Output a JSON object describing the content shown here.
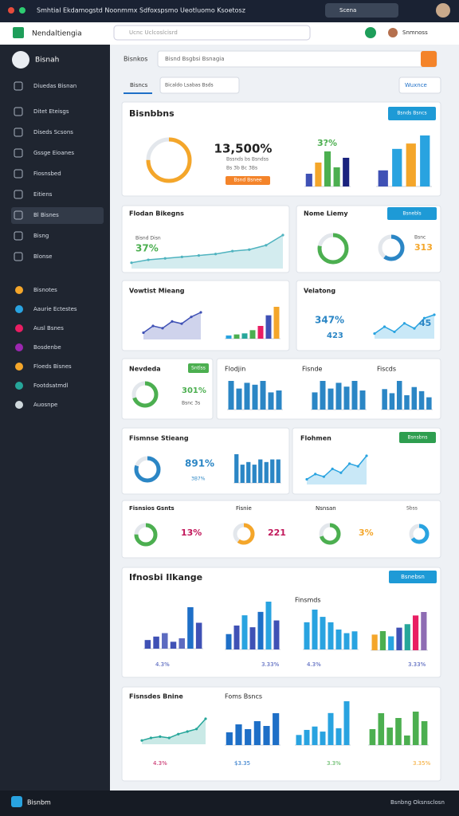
{
  "browser": {
    "title": "Smhtial Ekdamogstd Noonmmx Sdfoxspsmo Ueotluomo Ksoetosz",
    "search": "Scena"
  },
  "app": {
    "name": "Nendaltiengia",
    "search_placeholder": "Ucnc Uclcoslcisrd",
    "user": "Snmnoss"
  },
  "sidebar": {
    "user": "Bisnah",
    "items": [
      "Diuedas Bisnan",
      "Ditet Eteisgs",
      "Diseds Scsons",
      "Gssge Eioanes",
      "Fiosnsbed",
      "Eitiens",
      "Bl Bisnes",
      "Bisng",
      "Blonse"
    ],
    "active_item": 6,
    "groups": [
      "Bisnotes",
      "Aaurie Ectestes",
      "Ausl Bsnes",
      "Bosdenbe",
      "Floeds Bisnes",
      "Footdsatmdl",
      "Auosnpe"
    ],
    "group_colors": [
      "#f4a62a",
      "#29a3e0",
      "#e91e63",
      "#9c27b0",
      "#f4a62a",
      "#26a69a",
      "#cfd8dc"
    ],
    "footer": "Bisnbm",
    "status": "Bsnbng Oksnsclosn"
  },
  "header": {
    "label": "Bisnkos",
    "search": "Bisnd Bsgbsi Bsnagia",
    "tab": "Bisncs",
    "dropdown": "Bicaldo Lsabas Bsds",
    "right_dropdown": "Wuxnce"
  },
  "cards": [
    {
      "texts": [
        "Bisnbbns",
        "Bsnds Bsncs",
        "13,500%",
        "Bssnds bs Bsndss",
        "Bs 3b Bc 3Bs",
        "Bsnd Bsnee",
        "3?%"
      ],
      "charts": [
        {
          "type": "donut",
          "values": [
            75
          ],
          "colors": [
            "#f4a62a"
          ]
        },
        {
          "type": "bar",
          "values": [
            8,
            15,
            22,
            12,
            18
          ],
          "colors": [
            "#3f51b5",
            "#f4a62a",
            "#4caf50",
            "#4caf50",
            "#1a237e"
          ]
        },
        {
          "type": "bar",
          "values": [
            18,
            42,
            48,
            57
          ],
          "colors": [
            "#3f51b5",
            "#29a3e0",
            "#f4a62a",
            "#29a3e0"
          ]
        }
      ]
    },
    {
      "texts": [
        "Flodan Bikegns",
        "Bisnd Disn",
        "37%"
      ],
      "charts": [
        {
          "type": "area",
          "values": [
            4,
            6,
            7,
            8,
            9,
            10,
            12,
            13,
            16,
            23
          ],
          "colors": [
            "#4fb3bf"
          ]
        }
      ]
    },
    {
      "texts": [
        "Nome Liemy",
        "Bsnebls",
        "313",
        "Bsnc"
      ],
      "charts": [
        {
          "type": "donut",
          "values": [
            78
          ],
          "colors": [
            "#4caf50"
          ]
        },
        {
          "type": "donut",
          "values": [
            60
          ],
          "colors": [
            "#2b86c5"
          ]
        }
      ]
    },
    {
      "texts": [
        "Vowtist Mieang"
      ],
      "charts": [
        {
          "type": "area",
          "values": [
            3,
            6,
            5,
            8,
            7,
            10,
            12
          ],
          "colors": [
            "#3f51b5"
          ]
        },
        {
          "type": "bar",
          "values": [
            3,
            4,
            5,
            8,
            12,
            22,
            30
          ],
          "colors": [
            "#29a3e0",
            "#4caf50",
            "#26a69a",
            "#4caf50",
            "#e91e63",
            "#3f51b5",
            "#f4a62a"
          ]
        }
      ]
    },
    {
      "texts": [
        "Velatong",
        "347%",
        "423",
        "45"
      ],
      "charts": [
        {
          "type": "area",
          "values": [
            3,
            7,
            4,
            9,
            6,
            12,
            14
          ],
          "colors": [
            "#29a3e0"
          ]
        }
      ]
    },
    {
      "texts": [
        "Nevdeda",
        "Sntlss",
        "301%",
        "Bsnc 3s"
      ],
      "charts": [
        {
          "type": "donut",
          "values": [
            70
          ],
          "colors": [
            "#4caf50"
          ]
        }
      ]
    },
    {
      "texts": [
        "Flodjin",
        "Fisnde",
        "Fiscds"
      ],
      "charts": [
        {
          "type": "bar",
          "values": [
            30,
            22,
            28,
            26,
            30,
            18,
            20
          ],
          "colors": [
            "#2b86c5"
          ]
        },
        {
          "type": "bar",
          "values": [
            18,
            30,
            22,
            28,
            24,
            30,
            20
          ],
          "colors": [
            "#2b86c5"
          ]
        },
        {
          "type": "bar",
          "values": [
            20,
            16,
            28,
            14,
            22,
            18,
            12
          ],
          "colors": [
            "#2b86c5"
          ]
        }
      ]
    },
    {
      "texts": [
        "Fismnse Stieang",
        "891%",
        "3B7%"
      ],
      "charts": [
        {
          "type": "donut",
          "values": [
            80
          ],
          "colors": [
            "#2b86c5"
          ]
        },
        {
          "type": "bar",
          "values": [
            22,
            14,
            16,
            14,
            18,
            16,
            18,
            18
          ],
          "colors": [
            "#2b86c5"
          ]
        }
      ]
    },
    {
      "texts": [
        "Flohmen",
        "Bsnsbns"
      ],
      "charts": [
        {
          "type": "area",
          "values": [
            4,
            8,
            6,
            12,
            9,
            16,
            14,
            22
          ],
          "colors": [
            "#29a3e0"
          ]
        }
      ]
    },
    {
      "texts": [
        "Fisnsios Gsnts",
        "Fisnie",
        "Nsnsan",
        "Sbss",
        "13%",
        "221",
        "3%"
      ],
      "charts": [
        {
          "type": "donut",
          "values": [
            75
          ],
          "colors": [
            "#4caf50"
          ]
        },
        {
          "type": "donut",
          "values": [
            60
          ],
          "colors": [
            "#f4a62a"
          ]
        },
        {
          "type": "donut",
          "values": [
            70
          ],
          "colors": [
            "#4caf50"
          ]
        },
        {
          "type": "donut",
          "values": [
            65
          ],
          "colors": [
            "#29a3e0"
          ]
        }
      ]
    },
    {
      "texts": [
        "Ifnosbi Ilkange",
        "Bsnebsn",
        "Finsmds",
        "4.3%",
        "3.33%",
        "4.3%",
        "3.33%"
      ],
      "charts": [
        {
          "type": "bar",
          "values": [
            10,
            14,
            18,
            8,
            12,
            48,
            30
          ],
          "colors": [
            "#3f51b5",
            "#3f51b5",
            "#5c6bc0",
            "#3f51b5",
            "#5c6bc0",
            "#1e6fc7",
            "#3f51b5"
          ]
        },
        {
          "type": "bar",
          "values": [
            18,
            28,
            40,
            26,
            44,
            56,
            34
          ],
          "colors": [
            "#1e6fc7",
            "#3f51b5",
            "#29a3e0",
            "#3f51b5",
            "#1e6fc7",
            "#29a3e0",
            "#3f51b5"
          ]
        },
        {
          "type": "bar",
          "values": [
            30,
            44,
            36,
            30,
            22,
            18,
            20
          ],
          "colors": [
            "#29a3e0"
          ]
        },
        {
          "type": "bar",
          "values": [
            18,
            22,
            16,
            26,
            30,
            40,
            44
          ],
          "colors": [
            "#f4a62a",
            "#4caf50",
            "#29a3e0",
            "#3f51b5",
            "#26a69a",
            "#e91e63",
            "#8e6cb3"
          ]
        }
      ]
    },
    {
      "texts": [
        "Fisnsdes Bnine",
        "Foms Bsncs",
        "4.3%",
        "$3.35",
        "3.3%",
        "3.35%"
      ],
      "charts": [
        {
          "type": "area",
          "values": [
            3,
            5,
            6,
            5,
            8,
            10,
            12,
            20
          ],
          "colors": [
            "#26a69a"
          ]
        },
        {
          "type": "bar",
          "values": [
            16,
            26,
            20,
            30,
            24,
            40
          ],
          "colors": [
            "#1e6fc7"
          ]
        },
        {
          "type": "bar",
          "values": [
            12,
            18,
            22,
            16,
            38,
            20,
            52
          ],
          "colors": [
            "#29a3e0"
          ]
        },
        {
          "type": "bar",
          "values": [
            20,
            40,
            22,
            34,
            12,
            42,
            30
          ],
          "colors": [
            "#4caf50"
          ]
        }
      ]
    }
  ]
}
